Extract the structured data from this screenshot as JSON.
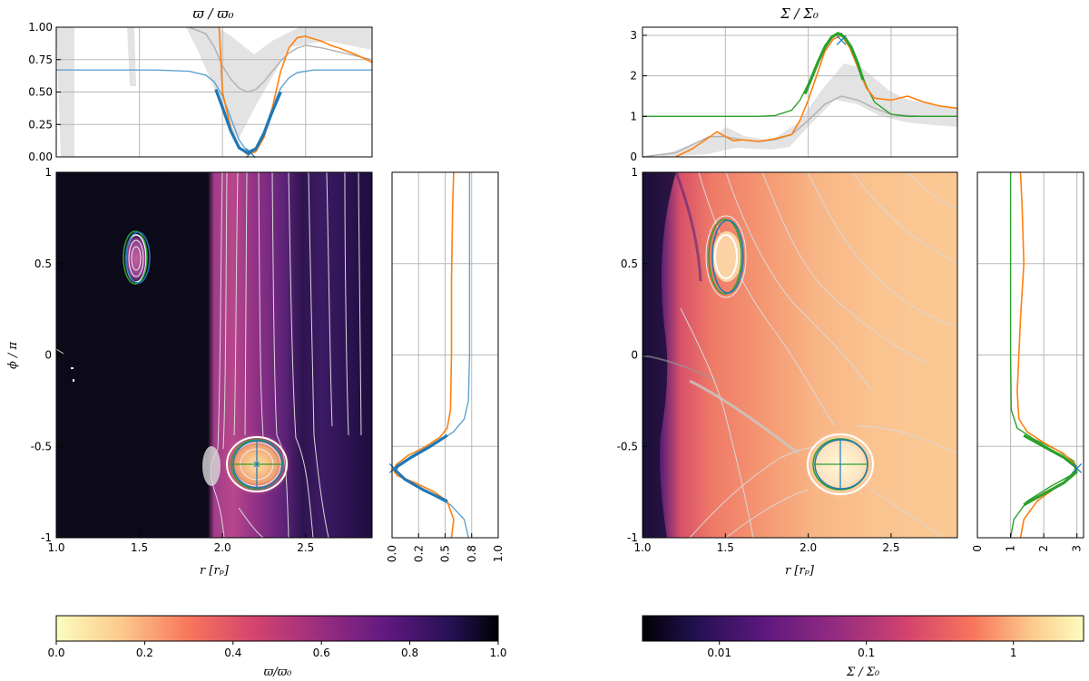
{
  "titles": {
    "left": "ϖ / ϖ₀",
    "right": "Σ / Σ₀"
  },
  "labels": {
    "r_axis": "r [rₚ]",
    "phi_axis": "ϕ / π",
    "left_colorbar": "ϖ/ϖ₀",
    "right_colorbar": "Σ / Σ₀"
  },
  "ticks": {
    "r": [
      "1.0",
      "1.5",
      "2.0",
      "2.5"
    ],
    "phi": [
      "1",
      "0.5",
      "0",
      "-0.5",
      "-1"
    ],
    "left_top_y": [
      "1.00",
      "0.75",
      "0.50",
      "0.25",
      "0.00"
    ],
    "right_top_y": [
      "3",
      "2",
      "1",
      "0"
    ],
    "left_side_x": [
      "0.0",
      "0.2",
      "0.5",
      "0.8",
      "1.0"
    ],
    "right_side_x": [
      "0",
      "1",
      "2",
      "3"
    ],
    "left_colorbar": [
      "0.0",
      "0.2",
      "0.4",
      "0.6",
      "0.8",
      "1.0"
    ],
    "right_colorbar": [
      "0.01",
      "0.1",
      "1"
    ]
  },
  "colors": {
    "orange": "#ff7f0e",
    "blue": "#1f77b4",
    "light_blue": "#5fa2d0",
    "green": "#2ca02c",
    "gray": "#b0b0b0",
    "band": "#e3e3e3"
  },
  "chart_data": [
    {
      "id": "vortensity-radial-profile",
      "type": "line",
      "title": "ϖ / ϖ₀",
      "xlim": [
        1.0,
        2.9
      ],
      "ylim": [
        0.0,
        1.0
      ],
      "grid": true,
      "series": [
        {
          "role": "orange",
          "x": [
            1.98,
            2.0,
            2.05,
            2.1,
            2.15,
            2.2,
            2.25,
            2.3,
            2.35,
            2.4,
            2.45,
            2.5,
            2.55,
            2.6,
            2.65,
            2.7,
            2.8,
            2.9
          ],
          "y": [
            1.0,
            0.5,
            0.22,
            0.07,
            0.02,
            0.04,
            0.15,
            0.38,
            0.66,
            0.84,
            0.92,
            0.93,
            0.91,
            0.89,
            0.86,
            0.84,
            0.79,
            0.73
          ]
        },
        {
          "role": "light_blue",
          "x": [
            1.0,
            1.6,
            1.8,
            1.9,
            1.95,
            2.0,
            2.05,
            2.1,
            2.15,
            2.2,
            2.25,
            2.3,
            2.35,
            2.4,
            2.45,
            2.55,
            2.7,
            2.9
          ],
          "y": [
            0.67,
            0.67,
            0.66,
            0.63,
            0.58,
            0.47,
            0.3,
            0.13,
            0.04,
            0.07,
            0.2,
            0.38,
            0.53,
            0.61,
            0.65,
            0.67,
            0.67,
            0.67
          ]
        },
        {
          "role": "blue-thick",
          "x": [
            1.96,
            2.0,
            2.05,
            2.1,
            2.15,
            2.2,
            2.25,
            2.3,
            2.35
          ],
          "y": [
            0.52,
            0.38,
            0.2,
            0.07,
            0.03,
            0.06,
            0.18,
            0.35,
            0.5
          ]
        },
        {
          "role": "gray",
          "x": [
            1.8,
            1.9,
            1.95,
            2.0,
            2.05,
            2.1,
            2.15,
            2.2,
            2.25,
            2.3,
            2.35,
            2.4,
            2.45,
            2.5,
            2.6,
            2.7,
            2.8,
            2.9
          ],
          "y": [
            1.0,
            0.95,
            0.85,
            0.7,
            0.6,
            0.53,
            0.5,
            0.52,
            0.58,
            0.66,
            0.74,
            0.8,
            0.84,
            0.86,
            0.84,
            0.81,
            0.78,
            0.75
          ]
        }
      ],
      "marker": {
        "x": 2.17,
        "y": 0.03,
        "symbol": "x"
      }
    },
    {
      "id": "surface-density-radial-profile",
      "type": "line",
      "title": "Σ / Σ₀",
      "xlim": [
        1.0,
        2.9
      ],
      "ylim": [
        0.0,
        3.2
      ],
      "grid": true,
      "series": [
        {
          "role": "orange",
          "x": [
            1.2,
            1.3,
            1.4,
            1.45,
            1.5,
            1.55,
            1.6,
            1.7,
            1.8,
            1.9,
            1.95,
            2.0,
            2.05,
            2.1,
            2.15,
            2.2,
            2.25,
            2.3,
            2.35,
            2.4,
            2.5,
            2.6,
            2.7,
            2.8,
            2.9
          ],
          "y": [
            0.0,
            0.2,
            0.48,
            0.62,
            0.5,
            0.4,
            0.42,
            0.38,
            0.45,
            0.55,
            0.9,
            1.4,
            2.0,
            2.6,
            2.9,
            3.0,
            2.7,
            2.2,
            1.7,
            1.45,
            1.4,
            1.5,
            1.35,
            1.25,
            1.2
          ]
        },
        {
          "role": "green",
          "x": [
            1.0,
            1.7,
            1.8,
            1.9,
            1.95,
            2.0,
            2.05,
            2.1,
            2.15,
            2.2,
            2.25,
            2.3,
            2.35,
            2.4,
            2.5,
            2.6,
            2.9
          ],
          "y": [
            1.0,
            1.0,
            1.02,
            1.15,
            1.4,
            1.8,
            2.3,
            2.75,
            3.0,
            3.05,
            2.8,
            2.3,
            1.75,
            1.35,
            1.05,
            1.0,
            1.0
          ]
        },
        {
          "role": "green-thick",
          "x": [
            1.98,
            2.02,
            2.06,
            2.1,
            2.14,
            2.18,
            2.22,
            2.26,
            2.3,
            2.33
          ],
          "y": [
            1.55,
            1.95,
            2.35,
            2.7,
            2.95,
            3.05,
            2.95,
            2.7,
            2.3,
            1.9
          ]
        },
        {
          "role": "gray",
          "x": [
            1.0,
            1.2,
            1.3,
            1.4,
            1.5,
            1.6,
            1.7,
            1.8,
            1.9,
            2.0,
            2.1,
            2.2,
            2.3,
            2.4,
            2.5,
            2.6,
            2.7,
            2.8,
            2.9
          ],
          "y": [
            0.0,
            0.1,
            0.3,
            0.5,
            0.5,
            0.42,
            0.38,
            0.42,
            0.55,
            0.9,
            1.3,
            1.5,
            1.4,
            1.2,
            1.05,
            1.02,
            1.0,
            1.0,
            1.0
          ]
        }
      ],
      "marker": {
        "x": 2.2,
        "y": 2.88,
        "symbol": "x"
      }
    },
    {
      "id": "vortensity-azimuthal-profile",
      "type": "line",
      "xlim": [
        0.0,
        1.0
      ],
      "ylim": [
        -1.0,
        1.0
      ],
      "grid": true,
      "series": [
        {
          "role": "orange",
          "y": [
            1.0,
            0.8,
            0.4,
            0.0,
            -0.3,
            -0.4,
            -0.45,
            -0.5,
            -0.55,
            -0.6,
            -0.63,
            -0.66,
            -0.7,
            -0.75,
            -0.8,
            -0.9,
            -1.0
          ],
          "x": [
            0.58,
            0.57,
            0.56,
            0.56,
            0.55,
            0.52,
            0.45,
            0.32,
            0.15,
            0.04,
            0.01,
            0.05,
            0.22,
            0.4,
            0.52,
            0.58,
            0.56
          ]
        },
        {
          "role": "light_blue",
          "y": [
            1.0,
            0.5,
            0.0,
            -0.25,
            -0.35,
            -0.42,
            -0.48,
            -0.54,
            -0.6,
            -0.63,
            -0.68,
            -0.75,
            -0.82,
            -0.9,
            -1.0
          ],
          "x": [
            0.73,
            0.73,
            0.73,
            0.72,
            0.68,
            0.58,
            0.42,
            0.22,
            0.06,
            0.03,
            0.12,
            0.33,
            0.55,
            0.68,
            0.72
          ]
        },
        {
          "role": "blue-thick",
          "y": [
            -0.44,
            -0.5,
            -0.56,
            -0.61,
            -0.63,
            -0.68,
            -0.74,
            -0.8
          ],
          "x": [
            0.52,
            0.36,
            0.18,
            0.05,
            0.03,
            0.12,
            0.3,
            0.52
          ]
        }
      ],
      "marker": {
        "x": 0.02,
        "y": -0.62,
        "symbol": "x"
      }
    },
    {
      "id": "surface-density-azimuthal-profile",
      "type": "line",
      "xlim": [
        0.0,
        3.2
      ],
      "ylim": [
        -1.0,
        1.0
      ],
      "grid": true,
      "series": [
        {
          "role": "orange",
          "y": [
            1.0,
            0.8,
            0.5,
            0.2,
            0.0,
            -0.2,
            -0.35,
            -0.42,
            -0.48,
            -0.54,
            -0.6,
            -0.63,
            -0.66,
            -0.72,
            -0.8,
            -0.9,
            -1.0
          ],
          "x": [
            1.3,
            1.35,
            1.4,
            1.3,
            1.25,
            1.2,
            1.25,
            1.5,
            2.0,
            2.6,
            2.95,
            3.0,
            2.9,
            2.4,
            1.8,
            1.4,
            1.3
          ]
        },
        {
          "role": "green",
          "y": [
            1.0,
            0.5,
            0.0,
            -0.3,
            -0.4,
            -0.46,
            -0.52,
            -0.58,
            -0.62,
            -0.66,
            -0.72,
            -0.8,
            -0.9,
            -1.0
          ],
          "x": [
            1.0,
            1.0,
            1.0,
            1.02,
            1.2,
            1.7,
            2.4,
            2.9,
            3.0,
            2.8,
            2.2,
            1.5,
            1.1,
            1.0
          ]
        },
        {
          "role": "green-thick",
          "y": [
            -0.44,
            -0.5,
            -0.56,
            -0.61,
            -0.64,
            -0.7,
            -0.76,
            -0.82
          ],
          "x": [
            1.4,
            2.0,
            2.6,
            2.95,
            2.98,
            2.6,
            2.0,
            1.4
          ]
        }
      ],
      "marker": {
        "x": 3.0,
        "y": -0.62,
        "symbol": "x"
      }
    },
    {
      "id": "vortensity-map",
      "type": "heatmap",
      "xlim": [
        1.0,
        2.9
      ],
      "ylim": [
        -1.0,
        1.0
      ],
      "colorbar": {
        "range": [
          0.0,
          1.0
        ],
        "colormap": "magma reversed"
      },
      "features": {
        "vortex_upper": {
          "r": 1.5,
          "phi": 0.55
        },
        "vortex_lower": {
          "r": 2.17,
          "phi": -0.62
        },
        "gap_edge_r": 1.97
      }
    },
    {
      "id": "surface-density-map",
      "type": "heatmap",
      "xlim": [
        1.0,
        2.9
      ],
      "ylim": [
        -1.0,
        1.0
      ],
      "colorbar": {
        "range": [
          0.003,
          3.0
        ],
        "scale": "log",
        "colormap": "magma"
      },
      "features": {
        "vortex_upper": {
          "r": 1.5,
          "phi": 0.55
        },
        "vortex_lower": {
          "r": 2.2,
          "phi": -0.62
        }
      }
    }
  ]
}
